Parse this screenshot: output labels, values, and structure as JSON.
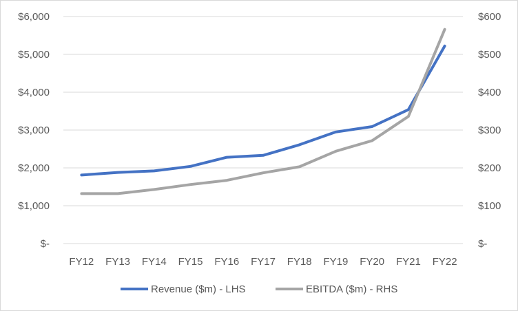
{
  "chart_data": {
    "type": "line",
    "title": "",
    "categories": [
      "FY12",
      "FY13",
      "FY14",
      "FY15",
      "FY16",
      "FY17",
      "FY18",
      "FY19",
      "FY20",
      "FY21",
      "FY22"
    ],
    "axes": {
      "left": {
        "ylim": [
          0,
          6000
        ],
        "ticks": [
          0,
          1000,
          2000,
          3000,
          4000,
          5000,
          6000
        ],
        "tick_labels": [
          "$-",
          "$1,000",
          "$2,000",
          "$3,000",
          "$4,000",
          "$5,000",
          "$6,000"
        ]
      },
      "right": {
        "ylim": [
          0,
          600
        ],
        "ticks": [
          0,
          100,
          200,
          300,
          400,
          500,
          600
        ],
        "tick_labels": [
          "$-",
          "$100",
          "$200",
          "$300",
          "$400",
          "$500",
          "$600"
        ]
      }
    },
    "series": [
      {
        "name": "Revenue ($m) - LHS",
        "axis": "left",
        "color": "#4472c4",
        "values": [
          1810,
          1880,
          1920,
          2040,
          2280,
          2330,
          2610,
          2950,
          3090,
          3540,
          5220
        ]
      },
      {
        "name": "EBITDA ($m) - RHS",
        "axis": "right",
        "color": "#a5a5a5",
        "values": [
          132,
          132,
          143,
          156,
          167,
          187,
          203,
          244,
          272,
          336,
          566
        ]
      }
    ],
    "grid": "horizontal",
    "legend_position": "bottom"
  }
}
